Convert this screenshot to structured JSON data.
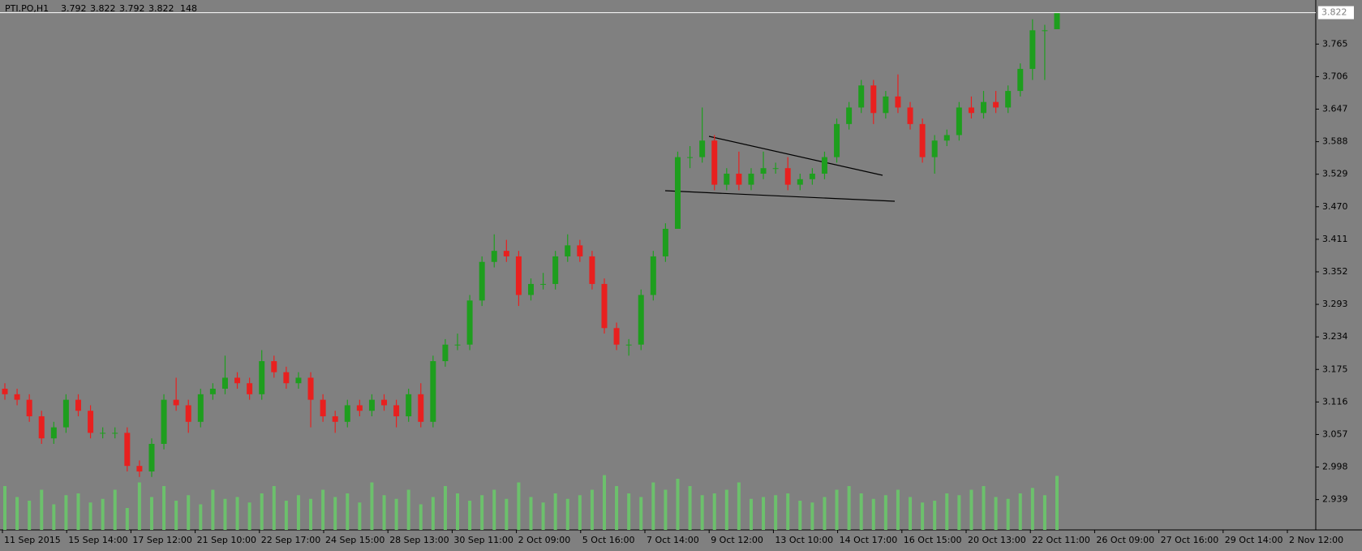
{
  "chart_data": {
    "type": "candlestick",
    "header": {
      "symbol": "PTI.PO,H1",
      "open": 3.792,
      "high": 3.822,
      "low": 3.792,
      "close": 3.822,
      "volume": 148
    },
    "x_labels": [
      "11 Sep 2015",
      "15 Sep 14:00",
      "17 Sep 12:00",
      "21 Sep 10:00",
      "22 Sep 17:00",
      "24 Sep 15:00",
      "28 Sep 13:00",
      "30 Sep 11:00",
      "2 Oct 09:00",
      "5 Oct 16:00",
      "7 Oct 14:00",
      "9 Oct 12:00",
      "13 Oct 10:00",
      "14 Oct 17:00",
      "16 Oct 15:00",
      "20 Oct 13:00",
      "22 Oct 11:00",
      "26 Oct 09:00",
      "27 Oct 16:00",
      "29 Oct 14:00",
      "2 Nov 12:00"
    ],
    "open": [
      3.14,
      3.13,
      3.12,
      3.09,
      3.05,
      3.07,
      3.12,
      3.1,
      3.06,
      3.06,
      3.06,
      3.0,
      2.99,
      3.04,
      3.12,
      3.11,
      3.08,
      3.13,
      3.14,
      3.16,
      3.15,
      3.13,
      3.19,
      3.17,
      3.15,
      3.16,
      3.12,
      3.09,
      3.08,
      3.11,
      3.1,
      3.12,
      3.11,
      3.09,
      3.13,
      3.08,
      3.19,
      3.22,
      3.22,
      3.3,
      3.37,
      3.39,
      3.38,
      3.31,
      3.33,
      3.33,
      3.38,
      3.4,
      3.38,
      3.33,
      3.25,
      3.22,
      3.22,
      3.31,
      3.38,
      3.43,
      3.56,
      3.56,
      3.59,
      3.51,
      3.53,
      3.51,
      3.53,
      3.54,
      3.54,
      3.51,
      3.52,
      3.53,
      3.56,
      3.62,
      3.65,
      3.69,
      3.64,
      3.67,
      3.65,
      3.62,
      3.56,
      3.59,
      3.6,
      3.65,
      3.64,
      3.66,
      3.65,
      3.68,
      3.72,
      3.79,
      3.792
    ],
    "high": [
      3.15,
      3.14,
      3.13,
      3.1,
      3.08,
      3.13,
      3.13,
      3.11,
      3.07,
      3.07,
      3.07,
      3.01,
      3.05,
      3.13,
      3.16,
      3.12,
      3.14,
      3.15,
      3.2,
      3.17,
      3.16,
      3.21,
      3.2,
      3.18,
      3.17,
      3.17,
      3.13,
      3.1,
      3.12,
      3.12,
      3.13,
      3.13,
      3.12,
      3.14,
      3.15,
      3.2,
      3.23,
      3.24,
      3.31,
      3.38,
      3.42,
      3.41,
      3.39,
      3.34,
      3.35,
      3.39,
      3.42,
      3.41,
      3.39,
      3.34,
      3.26,
      3.23,
      3.32,
      3.39,
      3.44,
      3.57,
      3.58,
      3.65,
      3.6,
      3.54,
      3.57,
      3.54,
      3.57,
      3.55,
      3.56,
      3.53,
      3.54,
      3.57,
      3.63,
      3.66,
      3.7,
      3.7,
      3.68,
      3.71,
      3.66,
      3.63,
      3.6,
      3.61,
      3.66,
      3.67,
      3.68,
      3.68,
      3.69,
      3.73,
      3.81,
      3.8,
      3.822
    ],
    "low": [
      3.12,
      3.11,
      3.08,
      3.04,
      3.04,
      3.06,
      3.09,
      3.05,
      3.05,
      3.05,
      2.99,
      2.98,
      2.98,
      3.03,
      3.1,
      3.06,
      3.07,
      3.12,
      3.13,
      3.14,
      3.12,
      3.12,
      3.16,
      3.14,
      3.14,
      3.07,
      3.08,
      3.06,
      3.07,
      3.09,
      3.09,
      3.1,
      3.07,
      3.08,
      3.07,
      3.07,
      3.18,
      3.21,
      3.21,
      3.29,
      3.36,
      3.37,
      3.29,
      3.3,
      3.32,
      3.32,
      3.37,
      3.37,
      3.32,
      3.24,
      3.21,
      3.2,
      3.21,
      3.3,
      3.37,
      3.43,
      3.54,
      3.55,
      3.5,
      3.5,
      3.5,
      3.5,
      3.52,
      3.53,
      3.5,
      3.5,
      3.51,
      3.52,
      3.55,
      3.61,
      3.64,
      3.62,
      3.63,
      3.64,
      3.61,
      3.55,
      3.53,
      3.58,
      3.59,
      3.63,
      3.63,
      3.64,
      3.64,
      3.67,
      3.7,
      3.7,
      3.792
    ],
    "close": [
      3.13,
      3.12,
      3.09,
      3.05,
      3.07,
      3.12,
      3.1,
      3.06,
      3.06,
      3.06,
      3.0,
      2.99,
      3.04,
      3.12,
      3.11,
      3.08,
      3.13,
      3.14,
      3.16,
      3.15,
      3.13,
      3.19,
      3.17,
      3.15,
      3.16,
      3.12,
      3.09,
      3.08,
      3.11,
      3.1,
      3.12,
      3.11,
      3.09,
      3.13,
      3.08,
      3.19,
      3.22,
      3.22,
      3.3,
      3.37,
      3.39,
      3.38,
      3.31,
      3.33,
      3.33,
      3.38,
      3.4,
      3.38,
      3.33,
      3.25,
      3.22,
      3.22,
      3.31,
      3.38,
      3.43,
      3.56,
      3.56,
      3.59,
      3.51,
      3.53,
      3.51,
      3.53,
      3.54,
      3.54,
      3.51,
      3.52,
      3.53,
      3.56,
      3.62,
      3.65,
      3.69,
      3.64,
      3.67,
      3.65,
      3.62,
      3.56,
      3.59,
      3.6,
      3.65,
      3.64,
      3.66,
      3.65,
      3.68,
      3.72,
      3.79,
      3.79,
      3.822
    ],
    "volume": [
      120,
      90,
      80,
      110,
      70,
      95,
      100,
      75,
      85,
      110,
      60,
      130,
      90,
      120,
      80,
      95,
      70,
      110,
      85,
      90,
      75,
      100,
      120,
      80,
      95,
      85,
      110,
      90,
      100,
      75,
      130,
      95,
      85,
      110,
      70,
      90,
      120,
      100,
      80,
      95,
      110,
      85,
      130,
      90,
      75,
      100,
      85,
      95,
      110,
      150,
      120,
      100,
      90,
      130,
      110,
      140,
      120,
      95,
      100,
      110,
      130,
      85,
      90,
      95,
      100,
      80,
      75,
      90,
      110,
      120,
      100,
      85,
      95,
      110,
      90,
      75,
      80,
      100,
      95,
      110,
      120,
      90,
      85,
      100,
      115,
      95,
      148
    ],
    "vlim": [
      0,
      200
    ],
    "up_color": "#1e9e1e",
    "down_color": "#e8201f",
    "volume_color": "#6cc06c",
    "ylim": [
      2.884,
      3.842
    ],
    "yticks": [
      3.765,
      3.706,
      3.647,
      3.588,
      3.529,
      {
        "value": 3.47,
        "label": "3.470"
      },
      3.411,
      3.352,
      3.293,
      3.234,
      3.175,
      3.116,
      3.057,
      2.998,
      2.939
    ]
  }
}
